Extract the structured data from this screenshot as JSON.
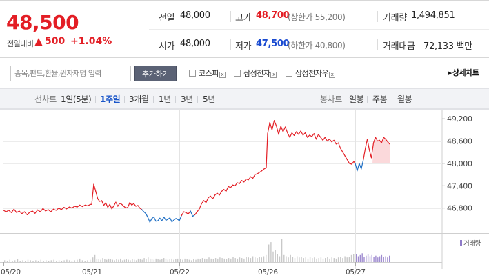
{
  "quote": {
    "current_price": "48,500",
    "change_label": "전일대비",
    "change_value": "500",
    "change_rate": "+1.04%",
    "prev_close_label": "전일",
    "prev_close": "48,000",
    "high_label": "고가",
    "high": "48,700",
    "upper_limit": "(상한가 55,200)",
    "volume_label": "거래량",
    "volume": "1,494,851",
    "open_label": "시가",
    "open": "48,000",
    "low_label": "저가",
    "low": "47,500",
    "lower_limit": "(하한가 40,800)",
    "trade_value_label": "거래대금",
    "trade_value": "72,133 백만",
    "colors": {
      "up": "#e31e25",
      "down": "#1a4bd1"
    }
  },
  "compare": {
    "search_placeholder": "종목,펀드,환율,원자재명 입력",
    "add_button": "추가하기",
    "items": [
      "코스피",
      "삼성전자",
      "삼성전자우"
    ],
    "remove_glyph": "x",
    "detail_link": "상세차트"
  },
  "tabs": {
    "line_label": "선차트",
    "periods": [
      "1일(5분)",
      "1주일",
      "3개월",
      "1년",
      "3년",
      "5년"
    ],
    "active_period": "1주일",
    "candle_label": "봉차트",
    "candles": [
      "일봉",
      "주봉",
      "월봉"
    ]
  },
  "chart_data": {
    "type": "line",
    "y_ticks": [
      "49,200",
      "48,600",
      "48,000",
      "47,400",
      "46,800"
    ],
    "y_tick_values": [
      49200,
      48600,
      48000,
      47400,
      46800
    ],
    "ylim": [
      46350,
      49350
    ],
    "x_labels": [
      "05/20",
      "05/21",
      "05/22",
      "05/26",
      "05/27"
    ],
    "reference_price": 48000,
    "volume_legend": "거래량",
    "colors": {
      "above": "#e31e25",
      "below": "#1f6fc4",
      "fill": "#f9c9cc",
      "volume": "#c8c8c8",
      "volume_recent": "#9f8cd0"
    },
    "series": [
      {
        "day": "05/20",
        "values": [
          46740,
          46700,
          46740,
          46680,
          46770,
          46680,
          46720,
          46650,
          46700,
          46620,
          46690,
          46720,
          46660,
          46750,
          46700,
          46790,
          46720,
          46760,
          46700,
          46770,
          46740,
          46800,
          46760,
          46820,
          46780,
          46830,
          46800,
          46850,
          46830,
          46880,
          46840,
          46880,
          46860,
          46900
        ]
      },
      {
        "day": "05/21",
        "values": [
          46900,
          47440,
          47250,
          47050,
          46980,
          47000,
          46870,
          46940,
          46820,
          46900,
          46780,
          46860,
          46960,
          46850,
          46930,
          46900,
          46850,
          46800,
          46820,
          46950,
          46880,
          46920,
          46850,
          46870,
          46800,
          46760,
          46700,
          46650,
          46550,
          46420,
          46520,
          46560,
          46450,
          46460,
          46530,
          46460,
          46560,
          46470,
          46500,
          46540,
          46430,
          46480,
          46520,
          46490
        ]
      },
      {
        "day": "05/22",
        "values": [
          46460,
          46600,
          46700,
          46680,
          46640,
          46720,
          46580,
          46620,
          46700,
          46780,
          46920,
          47000,
          46950,
          47080,
          47120,
          47050,
          47150,
          47200,
          47150,
          47250,
          47300,
          47250,
          47380,
          47350,
          47420,
          47400,
          47480,
          47460,
          47540,
          47500,
          47580,
          47560,
          47640,
          47600,
          47700,
          47720,
          47760,
          47800,
          47850,
          47880
        ]
      },
      {
        "day": "05/26",
        "values": [
          48800,
          49100,
          48900,
          49150,
          49000,
          48780,
          49000,
          48850,
          48980,
          48820,
          48700,
          48820,
          48750,
          48850,
          48780,
          48870,
          48760,
          48820,
          48700,
          48760,
          48720,
          48800,
          48650,
          48780,
          48700,
          48620,
          48700,
          48600,
          48650,
          48580,
          48620,
          48520,
          48550,
          48400,
          48300,
          48200,
          48100,
          48000,
          47980,
          48050
        ]
      },
      {
        "day": "05/27",
        "values": [
          48000,
          47800,
          48000,
          47850,
          48100,
          48400,
          48650,
          48350,
          48150,
          48550,
          48700,
          48600,
          48620,
          48550,
          48700,
          48650,
          48580,
          48520
        ]
      }
    ],
    "volume": [
      [
        3,
        2,
        4,
        2,
        3,
        5,
        2,
        3,
        2,
        4,
        3,
        2,
        3,
        2,
        4,
        2,
        3,
        2,
        3,
        4,
        2,
        3,
        2,
        3,
        4,
        3,
        2,
        3,
        4,
        6,
        3,
        2,
        3,
        4
      ],
      [
        8,
        12,
        6,
        5,
        4,
        7,
        5,
        4,
        6,
        5,
        4,
        3,
        5,
        4,
        6,
        3,
        4,
        5,
        4,
        3,
        5,
        4,
        3,
        6,
        5,
        4,
        7,
        5,
        8,
        6,
        5,
        4,
        6,
        5,
        4,
        5,
        7,
        6,
        4,
        5,
        6,
        4,
        5,
        6
      ],
      [
        5,
        4,
        6,
        5,
        4,
        3,
        5,
        4,
        6,
        5,
        7,
        6,
        5,
        8,
        6,
        5,
        7,
        6,
        8,
        7,
        6,
        5,
        7,
        6,
        9,
        7,
        6,
        8,
        7,
        6,
        9,
        8,
        7,
        10,
        8,
        7,
        9,
        8,
        10,
        12
      ],
      [
        30,
        34,
        18,
        20,
        14,
        10,
        40,
        12,
        10,
        8,
        12,
        9,
        7,
        10,
        8,
        9,
        7,
        8,
        6,
        9,
        7,
        8,
        6,
        7,
        8,
        6,
        7,
        9,
        6,
        8,
        7,
        6,
        8,
        9,
        7,
        10,
        8,
        9,
        12,
        14
      ],
      [
        14,
        10,
        12,
        15,
        9,
        11,
        13,
        10,
        12,
        9,
        11,
        8,
        10,
        12,
        9,
        10,
        8,
        11
      ]
    ]
  }
}
